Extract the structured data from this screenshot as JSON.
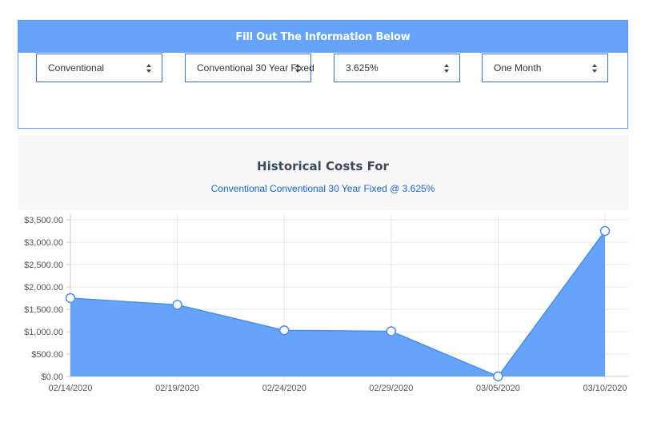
{
  "form": {
    "header": "Fill Out The Information Below",
    "selects": [
      {
        "value": "Conventional"
      },
      {
        "value": "Conventional 30 Year Fixed"
      },
      {
        "value": "3.625%"
      },
      {
        "value": "One Month"
      }
    ]
  },
  "chart_header": {
    "title": "Historical Costs For",
    "subtitle": "Conventional Conventional 30 Year Fixed @ 3.625%"
  },
  "colors": {
    "header_blue": "#66a3fb",
    "area_fill": "#66a3fb",
    "line_stroke": "#4a8fee",
    "subtitle_blue": "#1a66d2"
  },
  "chart_data": {
    "type": "area",
    "title": "",
    "xlabel": "",
    "ylabel": "",
    "categories": [
      "02/14/2020",
      "02/19/2020",
      "02/24/2020",
      "02/29/2020",
      "03/05/2020",
      "03/10/2020"
    ],
    "series": [
      {
        "values": [
          1750,
          1600,
          1030,
          1010,
          0,
          3250
        ]
      }
    ],
    "ylim": [
      0,
      3500
    ],
    "yticks": [
      0,
      500,
      1000,
      1500,
      2000,
      2500,
      3000,
      3500
    ],
    "ytick_labels": [
      "$0.00",
      "$500.00",
      "$1,000.00",
      "$1,500.00",
      "$2,000.00",
      "$2,500.00",
      "$3,000.00",
      "$3,500.00"
    ],
    "grid": true,
    "legend": "none"
  }
}
